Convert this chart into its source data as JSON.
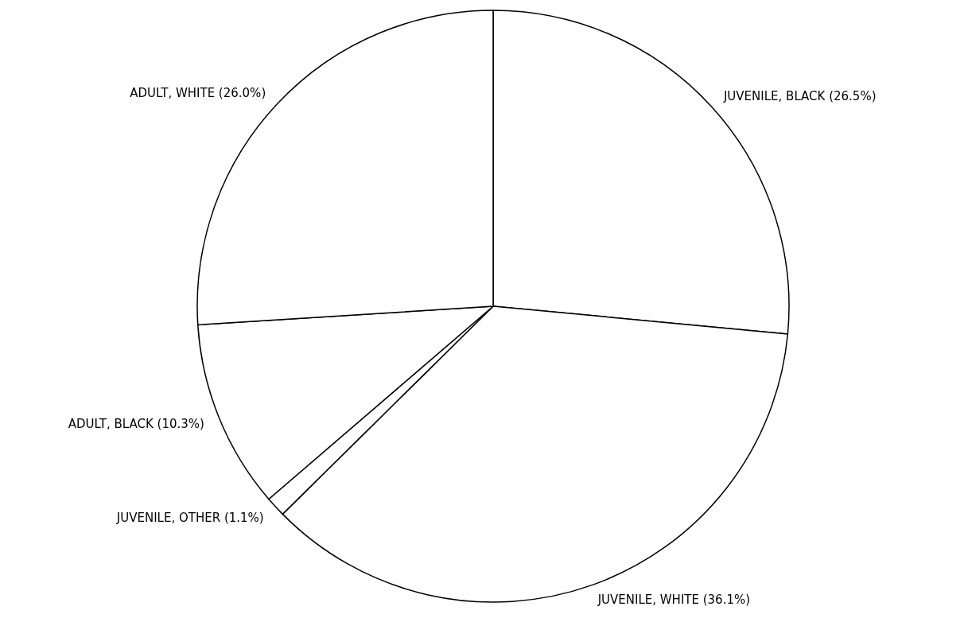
{
  "chart_data": {
    "type": "pie",
    "categories": [
      "JUVENILE, BLACK",
      "JUVENILE, WHITE",
      "JUVENILE, OTHER",
      "ADULT, BLACK",
      "ADULT, WHITE"
    ],
    "values": [
      26.5,
      36.1,
      1.1,
      10.3,
      26.0
    ],
    "value_labels": [
      "(26.5%)",
      "(36.1%)",
      "(1.1%)",
      "(10.3%)",
      "(26.0%)"
    ],
    "colors": [
      "#ffffff",
      "#ffffff",
      "#ffffff",
      "#ffffff",
      "#ffffff"
    ]
  }
}
